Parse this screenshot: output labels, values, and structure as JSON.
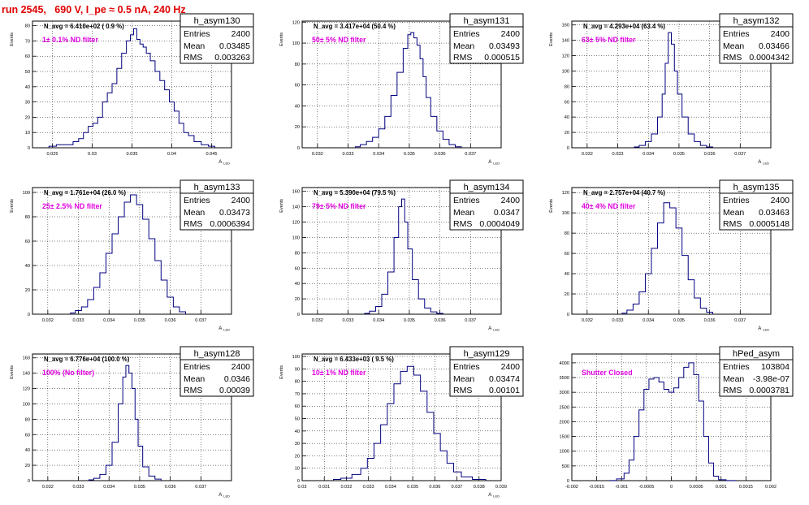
{
  "page_title": "run 2545,   690 V, I_pe ≈ 0.5 nA, 240 Hz",
  "colors": {
    "title": "#e00000",
    "hist": "#00007f",
    "filter_label": "#e000e0"
  },
  "stats_labels": {
    "entries": "Entries",
    "mean": "Mean",
    "rms": "RMS"
  },
  "chart_data": [
    {
      "type": "histogram",
      "name": "h_asym130",
      "navg": "N_avg = 6.410e+02 ( 0.9 %)",
      "filter_label": "1± 0.1% ND filter",
      "entries": "2400",
      "mean": "0.03485",
      "rms": "0.003263",
      "xlim": [
        0.0225,
        0.0475
      ],
      "ylim": [
        0,
        83
      ],
      "xticks": [
        0.025,
        0.03,
        0.035,
        0.04,
        0.045
      ],
      "xticklabels": [
        "0.025",
        "0.03",
        "0.035",
        "0.04",
        "0.045"
      ],
      "yticks": [
        0,
        10,
        20,
        30,
        40,
        50,
        60,
        70,
        80
      ],
      "yticklabels": [
        "0",
        "10",
        "20",
        "30",
        "40",
        "50",
        "60",
        "70",
        "80"
      ],
      "xlabel": "A_LED",
      "ylabel": "Events",
      "grid": true,
      "values": [
        [
          0.0248,
          1
        ],
        [
          0.0262,
          2
        ],
        [
          0.0272,
          2
        ],
        [
          0.028,
          4
        ],
        [
          0.0286,
          6
        ],
        [
          0.0292,
          10
        ],
        [
          0.0298,
          14
        ],
        [
          0.0304,
          16
        ],
        [
          0.031,
          20
        ],
        [
          0.0316,
          30
        ],
        [
          0.0322,
          36
        ],
        [
          0.0328,
          42
        ],
        [
          0.0334,
          52
        ],
        [
          0.034,
          62
        ],
        [
          0.0346,
          70
        ],
        [
          0.035,
          74
        ],
        [
          0.0354,
          78
        ],
        [
          0.0358,
          71
        ],
        [
          0.0362,
          68
        ],
        [
          0.0366,
          66
        ],
        [
          0.037,
          62
        ],
        [
          0.0376,
          57
        ],
        [
          0.0382,
          50
        ],
        [
          0.0388,
          44
        ],
        [
          0.0394,
          38
        ],
        [
          0.04,
          30
        ],
        [
          0.0406,
          24
        ],
        [
          0.0412,
          16
        ],
        [
          0.0418,
          10
        ],
        [
          0.0424,
          8
        ],
        [
          0.0432,
          4
        ],
        [
          0.0442,
          2
        ],
        [
          0.045,
          1
        ]
      ]
    },
    {
      "type": "histogram",
      "name": "h_asym131",
      "navg": "N_avg = 3.417e+04 (50.4 %)",
      "filter_label": "50± 5% ND filter",
      "entries": "2400",
      "mean": "0.03493",
      "rms": "0.000515",
      "xlim": [
        0.0315,
        0.038
      ],
      "ylim": [
        0,
        121
      ],
      "xticks": [
        0.032,
        0.033,
        0.034,
        0.035,
        0.036,
        0.037
      ],
      "xticklabels": [
        "0.032",
        "0.033",
        "0.034",
        "0.035",
        "0.036",
        "0.037"
      ],
      "yticks": [
        0,
        20,
        40,
        60,
        80,
        100,
        120
      ],
      "yticklabels": [
        "0",
        "20",
        "40",
        "60",
        "80",
        "100",
        "120"
      ],
      "xlabel": "A_LED",
      "ylabel": "Events",
      "grid": true,
      "values": [
        [
          0.0333,
          1
        ],
        [
          0.0335,
          3
        ],
        [
          0.0337,
          6
        ],
        [
          0.0339,
          10
        ],
        [
          0.0341,
          18
        ],
        [
          0.0343,
          30
        ],
        [
          0.0345,
          50
        ],
        [
          0.0347,
          72
        ],
        [
          0.0349,
          95
        ],
        [
          0.035,
          108
        ],
        [
          0.0351,
          110
        ],
        [
          0.0352,
          105
        ],
        [
          0.0353,
          98
        ],
        [
          0.0354,
          85
        ],
        [
          0.0355,
          68
        ],
        [
          0.0356,
          48
        ],
        [
          0.0358,
          30
        ],
        [
          0.036,
          16
        ],
        [
          0.0362,
          8
        ],
        [
          0.0364,
          3
        ],
        [
          0.0366,
          1
        ]
      ]
    },
    {
      "type": "histogram",
      "name": "h_asym132",
      "navg": "N_avg = 4.293e+04 (63.4 %)",
      "filter_label": "63± 5% ND filter",
      "entries": "2400",
      "mean": "0.03466",
      "rms": "0.0004342",
      "xlim": [
        0.0315,
        0.038
      ],
      "ylim": [
        0,
        165
      ],
      "xticks": [
        0.032,
        0.033,
        0.034,
        0.035,
        0.036,
        0.037
      ],
      "xticklabels": [
        "0.032",
        "0.033",
        "0.034",
        "0.035",
        "0.036",
        "0.037"
      ],
      "yticks": [
        0,
        20,
        40,
        60,
        80,
        100,
        120,
        140,
        160
      ],
      "yticklabels": [
        "0",
        "20",
        "40",
        "60",
        "80",
        "100",
        "120",
        "140",
        "160"
      ],
      "xlabel": "A_LED",
      "ylabel": "Events",
      "grid": true,
      "values": [
        [
          0.0336,
          1
        ],
        [
          0.0338,
          3
        ],
        [
          0.034,
          8
        ],
        [
          0.0342,
          18
        ],
        [
          0.0344,
          40
        ],
        [
          0.0345,
          70
        ],
        [
          0.0346,
          110
        ],
        [
          0.0347,
          150
        ],
        [
          0.0348,
          135
        ],
        [
          0.0349,
          100
        ],
        [
          0.035,
          70
        ],
        [
          0.0352,
          40
        ],
        [
          0.0354,
          18
        ],
        [
          0.0356,
          8
        ],
        [
          0.0358,
          3
        ],
        [
          0.036,
          1
        ]
      ]
    },
    {
      "type": "histogram",
      "name": "h_asym133",
      "navg": "N_avg = 1.761e+04 (26.0 %)",
      "filter_label": "25± 2.5% ND filter",
      "entries": "2400",
      "mean": "0.03473",
      "rms": "0.0006394",
      "xlim": [
        0.0315,
        0.038
      ],
      "ylim": [
        0,
        104
      ],
      "xticks": [
        0.032,
        0.033,
        0.034,
        0.035,
        0.036,
        0.037
      ],
      "xticklabels": [
        "0.032",
        "0.033",
        "0.034",
        "0.035",
        "0.036",
        "0.037"
      ],
      "yticks": [
        0,
        20,
        40,
        60,
        80,
        100
      ],
      "yticklabels": [
        "0",
        "20",
        "40",
        "60",
        "80",
        "100"
      ],
      "xlabel": "A_LED",
      "ylabel": "Events",
      "grid": true,
      "values": [
        [
          0.0328,
          1
        ],
        [
          0.033,
          3
        ],
        [
          0.0332,
          6
        ],
        [
          0.0334,
          12
        ],
        [
          0.0336,
          22
        ],
        [
          0.0338,
          34
        ],
        [
          0.034,
          50
        ],
        [
          0.0342,
          66
        ],
        [
          0.0344,
          80
        ],
        [
          0.0346,
          92
        ],
        [
          0.0348,
          98
        ],
        [
          0.035,
          90
        ],
        [
          0.0352,
          78
        ],
        [
          0.0354,
          62
        ],
        [
          0.0356,
          44
        ],
        [
          0.0358,
          28
        ],
        [
          0.036,
          14
        ],
        [
          0.0362,
          6
        ],
        [
          0.0364,
          2
        ]
      ]
    },
    {
      "type": "histogram",
      "name": "h_asym134",
      "navg": "N_avg = 5.390e+04 (79.5 %)",
      "filter_label": "79± 5% ND filter",
      "entries": "2400",
      "mean": "0.0347",
      "rms": "0.0004049",
      "xlim": [
        0.0315,
        0.038
      ],
      "ylim": [
        0,
        165
      ],
      "xticks": [
        0.032,
        0.033,
        0.034,
        0.035,
        0.036,
        0.037
      ],
      "xticklabels": [
        "0.032",
        "0.033",
        "0.034",
        "0.035",
        "0.036",
        "0.037"
      ],
      "yticks": [
        0,
        20,
        40,
        60,
        80,
        100,
        120,
        140,
        160
      ],
      "yticklabels": [
        "0",
        "20",
        "40",
        "60",
        "80",
        "100",
        "120",
        "140",
        "160"
      ],
      "xlabel": "A_LED",
      "ylabel": "Events",
      "grid": true,
      "values": [
        [
          0.0336,
          1
        ],
        [
          0.0338,
          4
        ],
        [
          0.034,
          10
        ],
        [
          0.0342,
          26
        ],
        [
          0.0344,
          55
        ],
        [
          0.0346,
          100
        ],
        [
          0.0347,
          140
        ],
        [
          0.0348,
          150
        ],
        [
          0.0349,
          120
        ],
        [
          0.035,
          85
        ],
        [
          0.0352,
          45
        ],
        [
          0.0354,
          20
        ],
        [
          0.0356,
          8
        ],
        [
          0.0358,
          3
        ],
        [
          0.036,
          1
        ]
      ]
    },
    {
      "type": "histogram",
      "name": "h_asym135",
      "navg": "N_avg = 2.757e+04 (40.7 %)",
      "filter_label": "40± 4% ND filter",
      "entries": "2400",
      "mean": "0.03463",
      "rms": "0.0005148",
      "xlim": [
        0.0315,
        0.038
      ],
      "ylim": [
        0,
        125
      ],
      "xticks": [
        0.032,
        0.033,
        0.034,
        0.035,
        0.036,
        0.037
      ],
      "xticklabels": [
        "0.032",
        "0.033",
        "0.034",
        "0.035",
        "0.036",
        "0.037"
      ],
      "yticks": [
        0,
        20,
        40,
        60,
        80,
        100,
        120
      ],
      "yticklabels": [
        "0",
        "20",
        "40",
        "60",
        "80",
        "100",
        "120"
      ],
      "xlabel": "A_LED",
      "ylabel": "Events",
      "grid": true,
      "values": [
        [
          0.0332,
          1
        ],
        [
          0.0334,
          4
        ],
        [
          0.0336,
          10
        ],
        [
          0.0338,
          22
        ],
        [
          0.034,
          40
        ],
        [
          0.0342,
          65
        ],
        [
          0.0344,
          90
        ],
        [
          0.0346,
          110
        ],
        [
          0.0348,
          105
        ],
        [
          0.035,
          85
        ],
        [
          0.0352,
          58
        ],
        [
          0.0354,
          34
        ],
        [
          0.0356,
          16
        ],
        [
          0.0358,
          6
        ],
        [
          0.036,
          2
        ]
      ]
    },
    {
      "type": "histogram",
      "name": "h_asym128",
      "navg": "N_avg = 6.776e+04 (100.0 %)",
      "filter_label": "100% (No filter)",
      "entries": "2400",
      "mean": "0.0346",
      "rms": "0.00039",
      "xlim": [
        0.0315,
        0.038
      ],
      "ylim": [
        0,
        165
      ],
      "xticks": [
        0.032,
        0.033,
        0.034,
        0.035,
        0.036,
        0.037
      ],
      "xticklabels": [
        "0.032",
        "0.033",
        "0.034",
        "0.035",
        "0.036",
        "0.037"
      ],
      "yticks": [
        0,
        20,
        40,
        60,
        80,
        100,
        120,
        140,
        160
      ],
      "yticklabels": [
        "0",
        "20",
        "40",
        "60",
        "80",
        "100",
        "120",
        "140",
        "160"
      ],
      "xlabel": "A_LED",
      "ylabel": "Events",
      "grid": true,
      "values": [
        [
          0.0334,
          1
        ],
        [
          0.0336,
          3
        ],
        [
          0.0338,
          8
        ],
        [
          0.034,
          20
        ],
        [
          0.0342,
          50
        ],
        [
          0.0344,
          100
        ],
        [
          0.0345,
          135
        ],
        [
          0.0346,
          150
        ],
        [
          0.0347,
          140
        ],
        [
          0.0348,
          120
        ],
        [
          0.0349,
          80
        ],
        [
          0.035,
          45
        ],
        [
          0.0352,
          18
        ],
        [
          0.0354,
          6
        ],
        [
          0.0356,
          2
        ]
      ]
    },
    {
      "type": "histogram",
      "name": "h_asym129",
      "navg": "N_avg = 6.433e+03 ( 9.5 %)",
      "filter_label": "10± 1% ND filter",
      "entries": "2400",
      "mean": "0.03474",
      "rms": "0.00101",
      "xlim": [
        0.03,
        0.039
      ],
      "ylim": [
        0,
        102
      ],
      "xticks": [
        0.03,
        0.031,
        0.032,
        0.033,
        0.034,
        0.035,
        0.036,
        0.037,
        0.038,
        0.039
      ],
      "xticklabels": [
        "0.03",
        "0.031",
        "0.032",
        "0.033",
        "0.034",
        "0.035",
        "0.036",
        "0.037",
        "0.038",
        "0.039"
      ],
      "yticks": [
        0,
        10,
        20,
        30,
        40,
        50,
        60,
        70,
        80,
        90,
        100
      ],
      "yticklabels": [
        "0",
        "10",
        "20",
        "30",
        "40",
        "50",
        "60",
        "70",
        "80",
        "90",
        "100"
      ],
      "xlabel": "A_LED",
      "ylabel": "Events",
      "grid": true,
      "values": [
        [
          0.0315,
          1
        ],
        [
          0.032,
          2
        ],
        [
          0.0325,
          5
        ],
        [
          0.0328,
          10
        ],
        [
          0.0331,
          18
        ],
        [
          0.0334,
          30
        ],
        [
          0.0337,
          45
        ],
        [
          0.034,
          62
        ],
        [
          0.0343,
          78
        ],
        [
          0.0346,
          88
        ],
        [
          0.0349,
          92
        ],
        [
          0.0352,
          85
        ],
        [
          0.0355,
          72
        ],
        [
          0.0358,
          55
        ],
        [
          0.0361,
          38
        ],
        [
          0.0364,
          24
        ],
        [
          0.0367,
          14
        ],
        [
          0.037,
          7
        ],
        [
          0.0374,
          3
        ],
        [
          0.038,
          1
        ]
      ]
    },
    {
      "type": "histogram",
      "name": "hPed_asym",
      "navg": "",
      "filter_label": "Shutter Closed",
      "entries": "103804",
      "mean": "-3.98e-07",
      "rms": "0.0003781",
      "xlim": [
        -0.002,
        0.002
      ],
      "ylim": [
        0,
        4300
      ],
      "xticks": [
        -0.002,
        -0.0015,
        -0.001,
        -0.0005,
        0,
        0.0005,
        0.001,
        0.0015,
        0.002
      ],
      "xticklabels": [
        "-0.002",
        "-0.0015",
        "-0.001",
        "-0.0005",
        "0",
        "0.0005",
        "0.001",
        "0.0015",
        "0.002"
      ],
      "yticks": [
        0,
        500,
        1000,
        1500,
        2000,
        2500,
        3000,
        3500,
        4000
      ],
      "yticklabels": [
        "0",
        "500",
        "1000",
        "1500",
        "2000",
        "2500",
        "3000",
        "3500",
        "4000"
      ],
      "xlabel": "",
      "ylabel": "",
      "grid": true,
      "values": [
        [
          -0.0012,
          5
        ],
        [
          -0.001,
          60
        ],
        [
          -0.0009,
          250
        ],
        [
          -0.0008,
          700
        ],
        [
          -0.0007,
          1500
        ],
        [
          -0.0006,
          2400
        ],
        [
          -0.0005,
          3100
        ],
        [
          -0.0004,
          3450
        ],
        [
          -0.0003,
          3500
        ],
        [
          -0.0002,
          3350
        ],
        [
          -0.0001,
          3100
        ],
        [
          0,
          3000
        ],
        [
          0.0001,
          3150
        ],
        [
          0.0002,
          3500
        ],
        [
          0.0003,
          3850
        ],
        [
          0.0004,
          4000
        ],
        [
          0.0005,
          3600
        ],
        [
          0.0006,
          2700
        ],
        [
          0.0007,
          1500
        ],
        [
          0.0008,
          600
        ],
        [
          0.0009,
          150
        ],
        [
          0.001,
          30
        ],
        [
          0.0012,
          3
        ]
      ]
    }
  ]
}
